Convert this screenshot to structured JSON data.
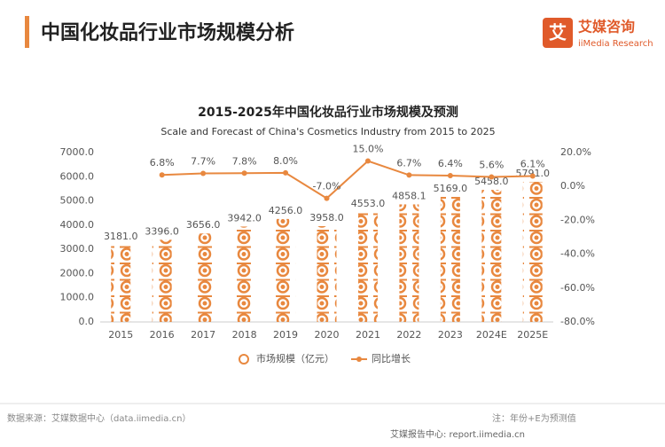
{
  "header": {
    "title": "中国化妆品行业市场规模分析",
    "logo_cn": "艾媒咨询",
    "logo_en": "iiMedia Research",
    "logo_icon": "艾"
  },
  "chart_data": {
    "type": "bar_line",
    "title": "2015-2025年中国化妆品行业市场规模及预测",
    "subtitle": "Scale and Forecast of China's Cosmetics Industry from 2015 to 2025",
    "categories": [
      "2015",
      "2016",
      "2017",
      "2018",
      "2019",
      "2020",
      "2021",
      "2022",
      "2023",
      "2024E",
      "2025E"
    ],
    "series": [
      {
        "name": "市场规模（亿元）",
        "type": "bar",
        "color": "#e8883f",
        "values": [
          3181,
          3396,
          3656,
          3942,
          4256,
          3958,
          4553,
          4858.1,
          5169,
          5458,
          5791
        ],
        "value_labels": [
          "3181.0",
          "3396.0",
          "3656.0",
          "3942.0",
          "4256.0",
          "3958.0",
          "4553.0",
          "4858.1",
          "5169.0",
          "5458.0",
          "5791.0"
        ]
      },
      {
        "name": "同比增长",
        "type": "line",
        "axis": "y2",
        "color": "#e8883f",
        "values": [
          null,
          6.8,
          7.7,
          7.8,
          8.0,
          -7.0,
          15.0,
          6.7,
          6.4,
          5.6,
          6.1
        ],
        "value_labels": [
          null,
          "6.8%",
          "7.7%",
          "7.8%",
          "8.0%",
          "-7.0%",
          "15.0%",
          "6.7%",
          "6.4%",
          "5.6%",
          "6.1%"
        ]
      }
    ],
    "ylim": [
      0,
      7000
    ],
    "yticks": [
      {
        "value": 0,
        "label": "0.0"
      },
      {
        "value": 1000,
        "label": "1000.0"
      },
      {
        "value": 2000,
        "label": "2000.0"
      },
      {
        "value": 3000,
        "label": "3000.0"
      },
      {
        "value": 4000,
        "label": "4000.0"
      },
      {
        "value": 5000,
        "label": "5000.0"
      },
      {
        "value": 6000,
        "label": "6000.0"
      },
      {
        "value": 7000,
        "label": "7000.0"
      }
    ],
    "y2lim": [
      -80,
      20
    ],
    "y2ticks": [
      {
        "value": -80,
        "label": "-80.0%"
      },
      {
        "value": -60,
        "label": "-60.0%"
      },
      {
        "value": -40,
        "label": "-40.0%"
      },
      {
        "value": -20,
        "label": "-20.0%"
      },
      {
        "value": 0,
        "label": "0.0%"
      },
      {
        "value": 20,
        "label": "20.0%"
      }
    ]
  },
  "footer": {
    "source": "数据来源：艾媒数据中心（data.iimedia.cn）",
    "note": "注：年份+E为预测值",
    "report": "艾媒报告中心: report.iimedia.cn"
  }
}
